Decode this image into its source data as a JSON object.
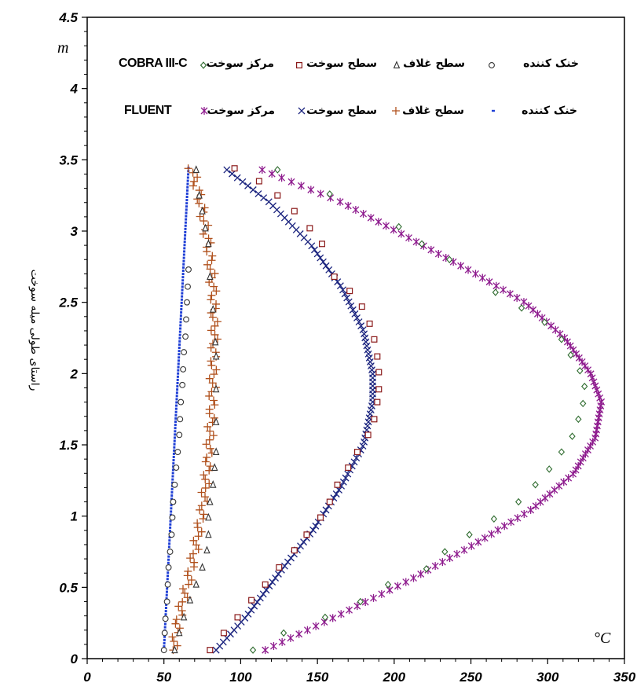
{
  "chart_data": {
    "type": "scatter",
    "xlabel": "°C",
    "ylabel": "راستای طولی میله سوخت",
    "ylabel_unit": "m",
    "xlim": [
      0,
      350
    ],
    "ylim": [
      0,
      4.5
    ],
    "x_ticks": [
      "0",
      "50",
      "100",
      "150",
      "200",
      "250",
      "300",
      "350"
    ],
    "y_ticks": [
      "0",
      "0.5",
      "1",
      "1.5",
      "2",
      "2.5",
      "3",
      "3.5",
      "4",
      "4.5"
    ],
    "legend": {
      "row1_label": "COBRA III-C",
      "row2_label": "FLUENT",
      "row1_entries": [
        "خنک کننده",
        "سطح غلاف",
        "سطح سوخت",
        "مرکز سوخت"
      ],
      "row2_entries": [
        "خنک کننده",
        "سطح غلاف",
        "سطح سوخت",
        "مرکز سوخت"
      ]
    },
    "series": [
      {
        "name": "خنک کننده",
        "group": "COBRA III-C",
        "marker": "circle",
        "color": "#333333",
        "x": [
          50,
          50.5,
          51,
          52,
          52.5,
          53,
          54,
          55,
          55.5,
          56,
          57,
          58,
          59,
          60,
          60.5,
          61,
          62,
          62.5,
          63,
          64,
          64.5,
          65,
          65.5,
          66
        ],
        "y": [
          0.06,
          0.18,
          0.28,
          0.4,
          0.52,
          0.64,
          0.75,
          0.87,
          0.99,
          1.1,
          1.22,
          1.34,
          1.45,
          1.57,
          1.68,
          1.8,
          1.92,
          2.03,
          2.15,
          2.26,
          2.38,
          2.5,
          2.61,
          2.73
        ]
      },
      {
        "name": "سطح غلاف",
        "group": "COBRA III-C",
        "marker": "triangle",
        "color": "#333333",
        "x": [
          57,
          60,
          63,
          67,
          71,
          75,
          78,
          79,
          79,
          80,
          82,
          83,
          84,
          84,
          84,
          84,
          83.5,
          82,
          80,
          79,
          77,
          75,
          73,
          71
        ],
        "y": [
          0.06,
          0.18,
          0.29,
          0.41,
          0.52,
          0.64,
          0.76,
          0.87,
          0.99,
          1.1,
          1.22,
          1.34,
          1.45,
          1.66,
          1.89,
          2.12,
          2.22,
          2.45,
          2.68,
          2.91,
          3.02,
          3.14,
          3.25,
          3.43
        ]
      },
      {
        "name": "سطح سوخت",
        "group": "COBRA III-C",
        "marker": "square",
        "color": "#8b1a1a",
        "x": [
          80,
          89,
          98,
          107,
          116,
          125,
          135,
          143,
          152,
          158,
          163,
          170,
          176,
          183,
          187,
          189,
          190,
          190,
          189,
          187,
          184,
          179,
          171,
          161,
          153,
          145,
          135,
          124,
          112,
          96
        ],
        "y": [
          0.06,
          0.18,
          0.29,
          0.41,
          0.52,
          0.64,
          0.76,
          0.87,
          0.99,
          1.1,
          1.22,
          1.34,
          1.45,
          1.57,
          1.68,
          1.8,
          1.89,
          2.01,
          2.12,
          2.24,
          2.35,
          2.47,
          2.58,
          2.68,
          2.91,
          3.02,
          3.14,
          3.25,
          3.35,
          3.44
        ]
      },
      {
        "name": "مرکز سوخت",
        "group": "COBRA III-C",
        "marker": "diamond",
        "color": "#2e6b2e",
        "x": [
          108,
          128,
          155,
          178,
          196,
          221,
          233,
          249,
          265,
          281,
          292,
          301,
          309,
          316,
          320,
          323,
          324,
          321,
          315,
          309,
          298,
          283,
          266,
          236,
          218,
          203,
          158,
          124
        ],
        "y": [
          0.06,
          0.18,
          0.29,
          0.4,
          0.52,
          0.63,
          0.75,
          0.87,
          0.98,
          1.1,
          1.22,
          1.33,
          1.45,
          1.56,
          1.68,
          1.79,
          1.91,
          2.02,
          2.13,
          2.24,
          2.36,
          2.46,
          2.57,
          2.8,
          2.91,
          3.03,
          3.26,
          3.43
        ]
      }
    ],
    "fluent_series": [
      {
        "name": "خنک کننده",
        "group": "FLUENT",
        "marker": "dash",
        "color": "#1f3fd6",
        "x_start": 50,
        "x_end": 66,
        "y_start": 0.06,
        "y_end": 3.44
      },
      {
        "name": "سطح غلاف",
        "group": "FLUENT",
        "marker": "plus",
        "color": "#b0501c",
        "profile": [
          [
            56,
            0.06
          ],
          [
            60,
            0.3
          ],
          [
            66,
            0.55
          ],
          [
            71,
            0.8
          ],
          [
            76,
            1.1
          ],
          [
            79,
            1.4
          ],
          [
            81,
            1.7
          ],
          [
            82,
            2.0
          ],
          [
            83,
            2.3
          ],
          [
            82,
            2.6
          ],
          [
            79,
            2.9
          ],
          [
            74,
            3.2
          ],
          [
            68,
            3.44
          ]
        ]
      },
      {
        "name": "سطح سوخت",
        "group": "FLUENT",
        "marker": "x",
        "color": "#1a237e",
        "profile": [
          [
            84,
            0.06
          ],
          [
            104,
            0.3
          ],
          [
            125,
            0.6
          ],
          [
            147,
            0.9
          ],
          [
            165,
            1.2
          ],
          [
            180,
            1.5
          ],
          [
            186,
            1.8
          ],
          [
            186,
            2.0
          ],
          [
            180,
            2.3
          ],
          [
            166,
            2.6
          ],
          [
            146,
            2.9
          ],
          [
            119,
            3.2
          ],
          [
            91,
            3.43
          ]
        ]
      },
      {
        "name": "مرکز سوخت",
        "group": "FLUENT",
        "marker": "asterisk",
        "color": "#8e1b8e",
        "profile": [
          [
            116,
            0.06
          ],
          [
            163,
            0.3
          ],
          [
            210,
            0.55
          ],
          [
            252,
            0.8
          ],
          [
            290,
            1.05
          ],
          [
            317,
            1.3
          ],
          [
            331,
            1.55
          ],
          [
            335,
            1.8
          ],
          [
            328,
            2.0
          ],
          [
            311,
            2.25
          ],
          [
            285,
            2.5
          ],
          [
            253,
            2.7
          ],
          [
            210,
            2.95
          ],
          [
            166,
            3.2
          ],
          [
            114,
            3.43
          ]
        ]
      }
    ]
  }
}
